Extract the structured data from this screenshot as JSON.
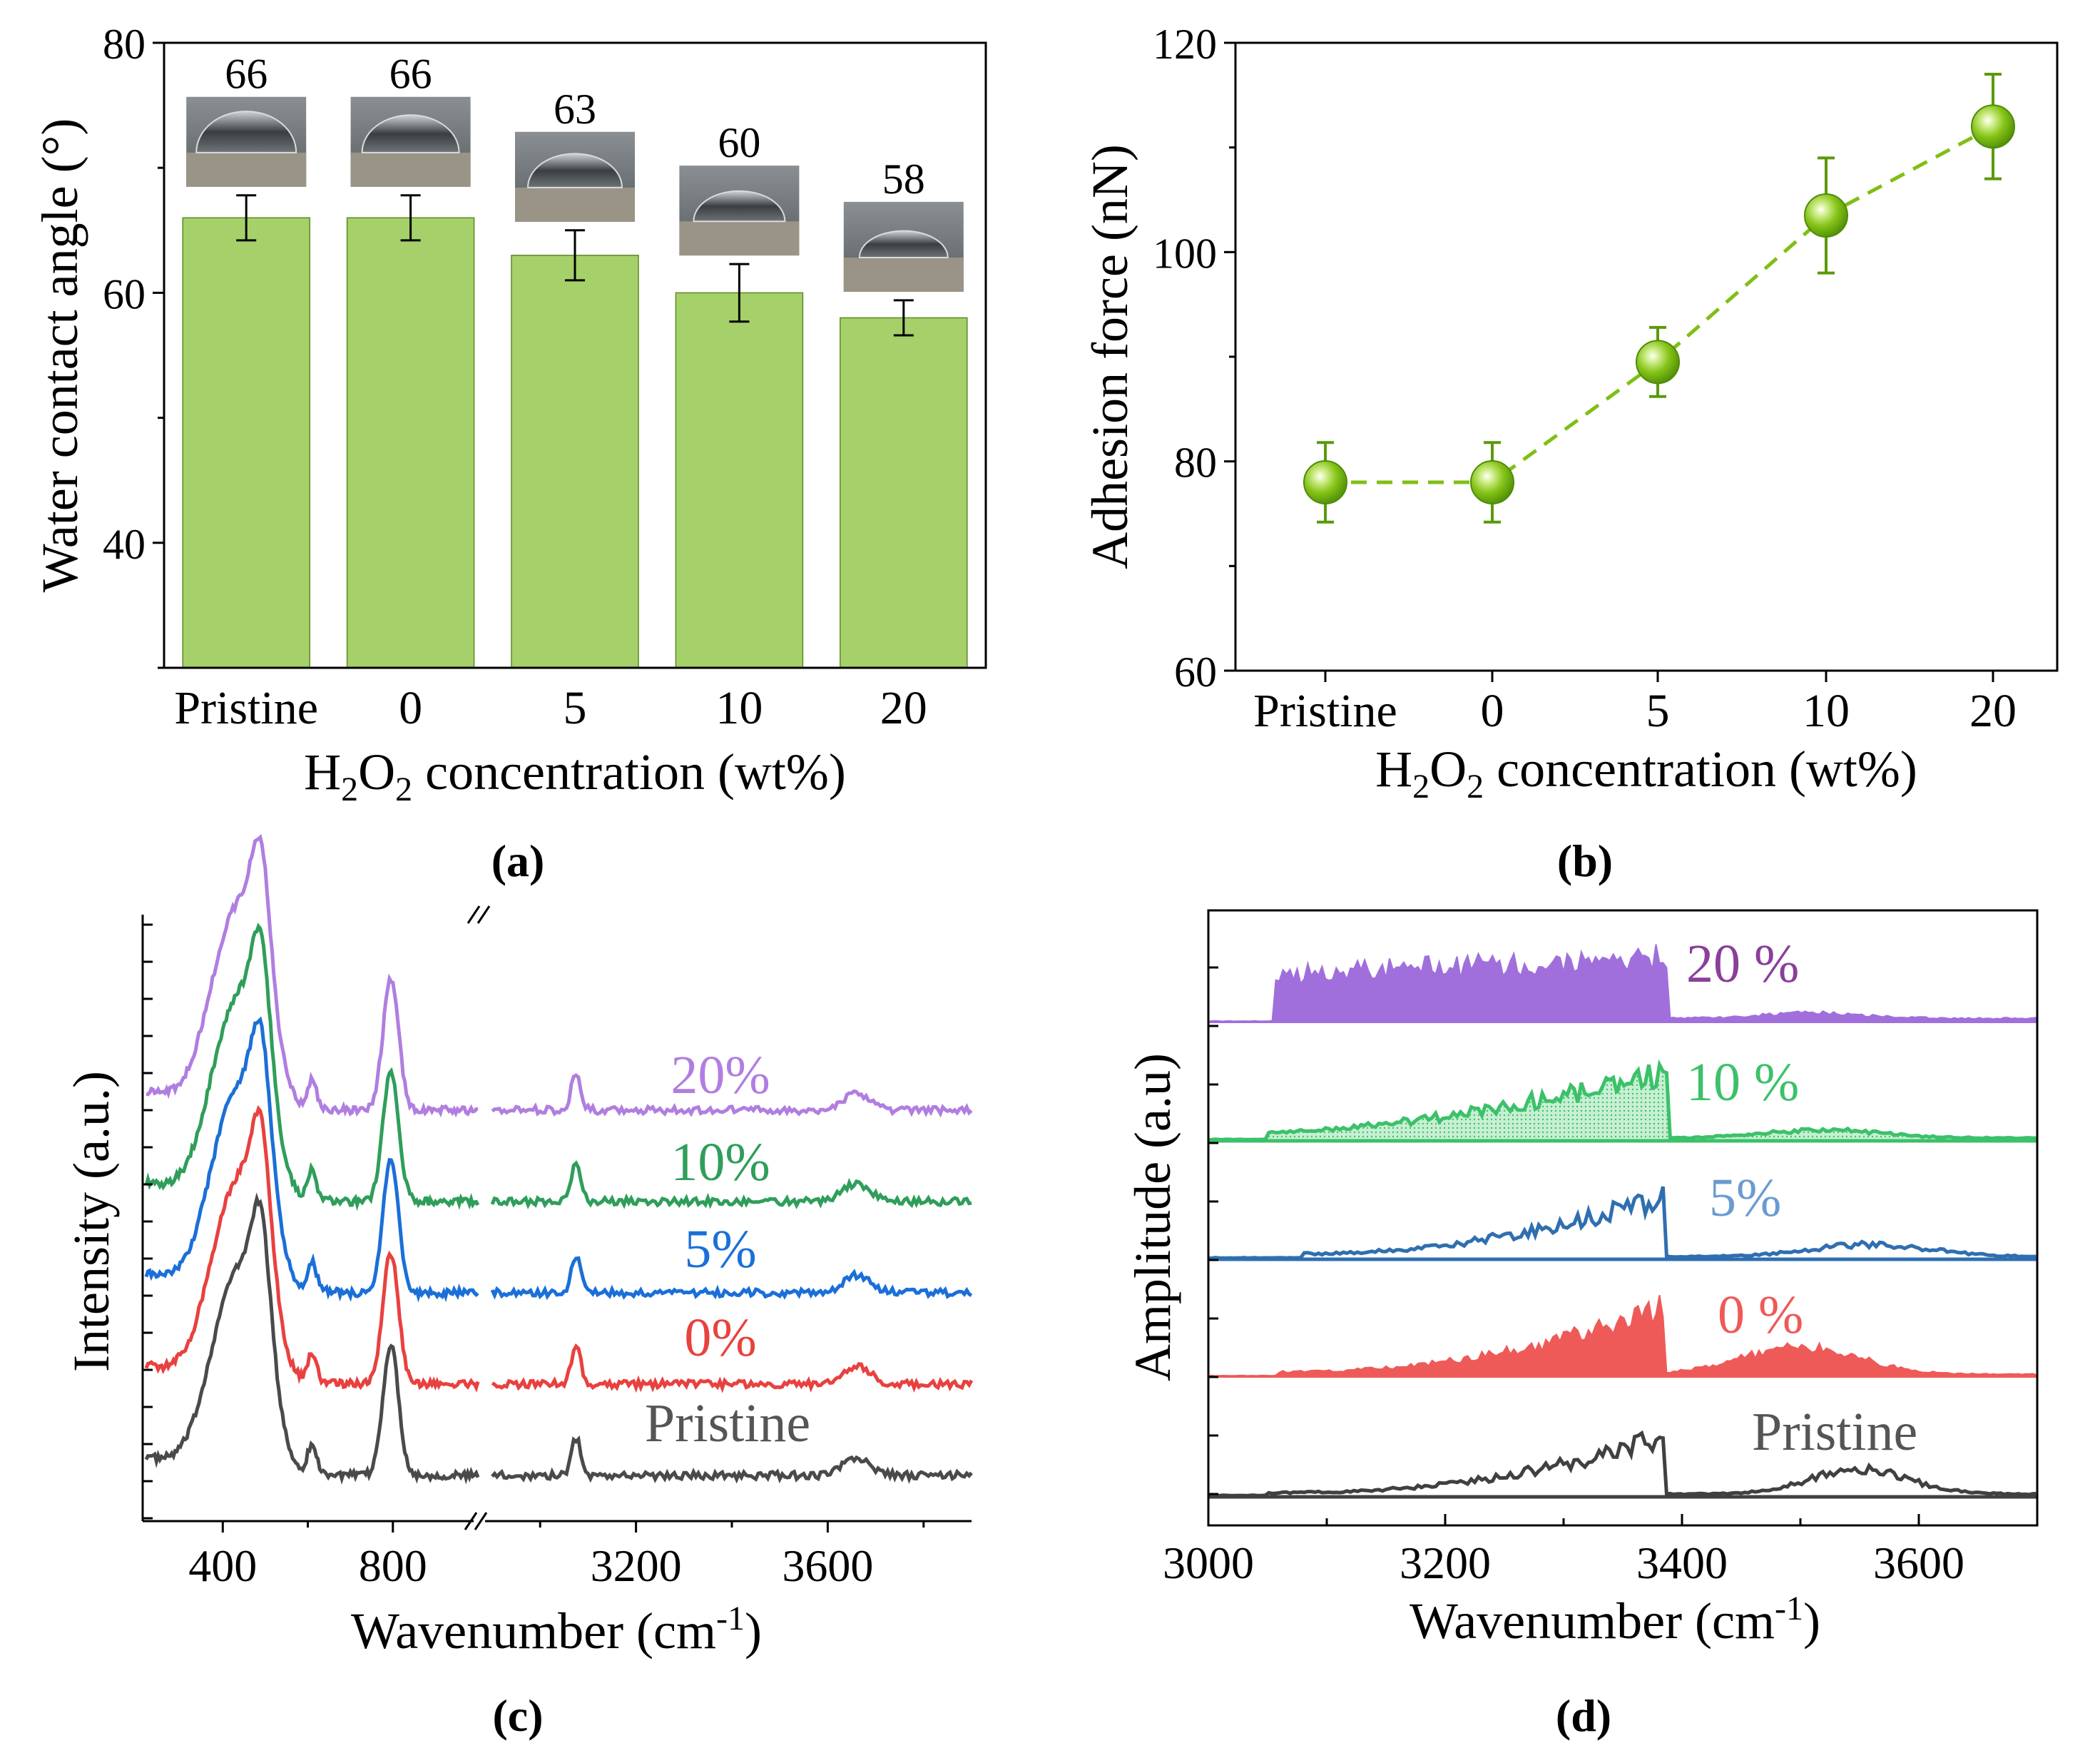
{
  "figure": {
    "panels": [
      "a",
      "b",
      "c",
      "d"
    ]
  },
  "colors": {
    "bar_fill": "#a6d06a",
    "bar_edge": "#5a8a22",
    "adhesion": "#7fbf14",
    "adhesion_dark": "#5a9a0a",
    "gray": "#4a4a4a",
    "red": "#e8413f",
    "blue": "#1b6fd8",
    "green": "#2f9e5a",
    "purple": "#b07ee0",
    "d_purple": "#a06fdc",
    "d_green": "#3cc16a",
    "d_blue": "#2f6fb0",
    "d_red": "#ee5a58",
    "d_gray": "#404040",
    "label_gray": "#555555",
    "label_purple": "#8a3f9a",
    "label_blue": "#6a9bd0"
  },
  "chart_data": [
    {
      "id": "a",
      "type": "bar",
      "caption": "(a)",
      "categories": [
        "Pristine",
        "0",
        "5",
        "10",
        "20"
      ],
      "values": [
        66,
        66,
        63,
        60,
        58
      ],
      "errors": [
        1.8,
        1.8,
        2.0,
        2.3,
        1.4
      ],
      "value_labels": [
        "66",
        "66",
        "63",
        "60",
        "58"
      ],
      "ylim": [
        30,
        80
      ],
      "yticks": [
        40,
        60,
        80
      ],
      "ylabel": "Water contact angle (°)",
      "xlabel": {
        "base1": "H",
        "sub1": "2",
        "base2": "O",
        "sub2": "2",
        "rest": " concentration (wt%)"
      },
      "inset": "water droplet photograph above each bar"
    },
    {
      "id": "b",
      "type": "line",
      "caption": "(b)",
      "categories": [
        "Pristine",
        "0",
        "5",
        "10",
        "20"
      ],
      "values": [
        78,
        78,
        89.5,
        103.5,
        112
      ],
      "errors": [
        3.8,
        3.8,
        3.3,
        5.5,
        5.0
      ],
      "ylim": [
        60,
        120
      ],
      "yticks": [
        60,
        80,
        100,
        120
      ],
      "ylabel": "Adhesion force (nN)",
      "xlabel": {
        "base1": "H",
        "sub1": "2",
        "base2": "O",
        "sub2": "2",
        "rest": " concentration (wt%)"
      },
      "line_style": "dashed"
    },
    {
      "id": "c",
      "type": "line",
      "caption": "(c)",
      "ylabel": "Intensity (a.u.)",
      "xlabel": {
        "base": "Wavenumber (cm",
        "sup": "-1",
        "end": ")"
      },
      "xticks": [
        "400",
        "800",
        "3200",
        "3600"
      ],
      "segment1_range": [
        220,
        1000
      ],
      "segment2_range": [
        2900,
        3900
      ],
      "axis_break": "//",
      "series": [
        {
          "name": "Pristine",
          "offset": 0.0
        },
        {
          "name": "0%",
          "offset": 0.76
        },
        {
          "name": "5%",
          "offset": 1.52
        },
        {
          "name": "10%",
          "offset": 2.28
        },
        {
          "name": "20%",
          "offset": 3.04
        }
      ]
    },
    {
      "id": "d",
      "type": "area",
      "caption": "(d)",
      "ylabel": "Amplitude (a.u)",
      "xlabel": {
        "base": "Wavenumber (cm",
        "sup": "-1",
        "end": ")"
      },
      "xlim": [
        3000,
        3700
      ],
      "xticks": [
        "3000",
        "3200",
        "3400",
        "3600"
      ],
      "series": [
        {
          "name": "Pristine",
          "style": "outline"
        },
        {
          "name": "0 %",
          "style": "filled"
        },
        {
          "name": "5%",
          "style": "outline"
        },
        {
          "name": "10 %",
          "style": "hatched"
        },
        {
          "name": "20 %",
          "style": "filled"
        }
      ]
    }
  ]
}
